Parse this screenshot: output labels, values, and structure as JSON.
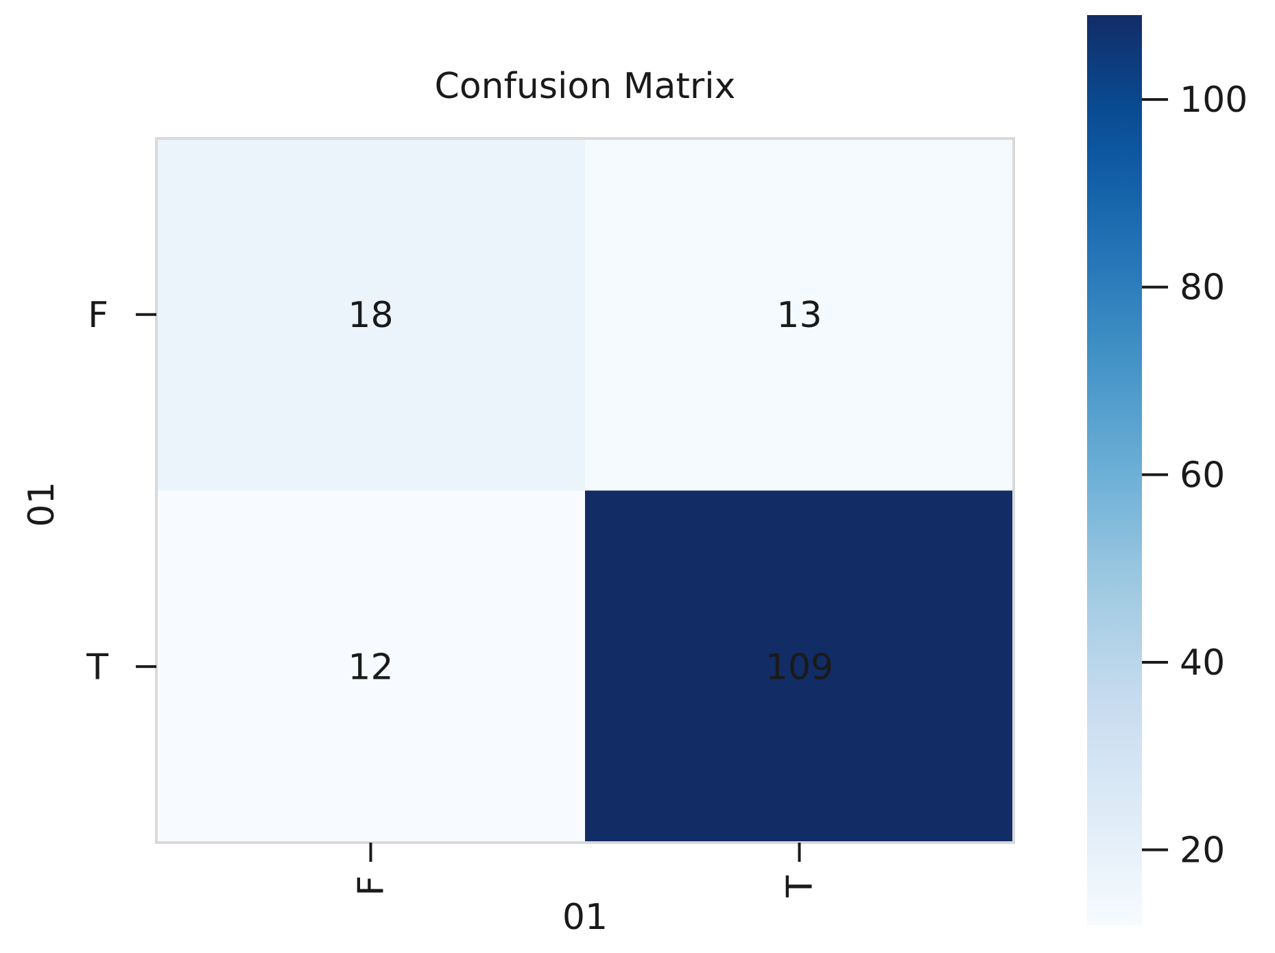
{
  "chart_data": {
    "type": "heatmap",
    "title": "Confusion Matrix",
    "xlabel": "01",
    "ylabel": "01",
    "x_categories": [
      "F",
      "T"
    ],
    "y_categories": [
      "F",
      "T"
    ],
    "values": [
      [
        18,
        13
      ],
      [
        12,
        109
      ]
    ],
    "colormap": "Blues",
    "colorbar": {
      "ticks": [
        20,
        40,
        60,
        80,
        100
      ],
      "tick_labels": [
        "20",
        "40",
        "60",
        "80",
        "100"
      ],
      "range": [
        12,
        109
      ]
    },
    "grid": false,
    "legend": "colorbar-right"
  }
}
